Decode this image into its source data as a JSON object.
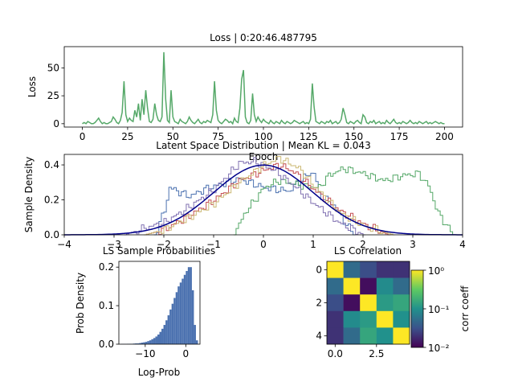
{
  "chart_data": [
    {
      "type": "line",
      "title": "Loss | 0:20:46.487795",
      "xlabel": "Epoch",
      "ylabel": "Loss",
      "xlim": [
        -10,
        210
      ],
      "ylim": [
        -3,
        69
      ],
      "xticks": [
        "0",
        "25",
        "50",
        "75",
        "100",
        "125",
        "150",
        "175",
        "200"
      ],
      "yticks": [
        "0",
        "25",
        "50"
      ],
      "series": [
        {
          "color": "#55a868",
          "x": [
            0,
            1,
            2,
            3,
            4,
            5,
            6,
            7,
            8,
            9,
            10,
            11,
            12,
            13,
            14,
            15,
            16,
            17,
            18,
            19,
            20,
            21,
            22,
            23,
            24,
            25,
            26,
            27,
            28,
            29,
            30,
            31,
            32,
            33,
            34,
            35,
            36,
            37,
            38,
            39,
            40,
            41,
            42,
            43,
            44,
            45,
            46,
            47,
            48,
            49,
            50,
            51,
            52,
            53,
            54,
            55,
            56,
            57,
            58,
            59,
            60,
            61,
            62,
            63,
            64,
            65,
            66,
            67,
            68,
            69,
            70,
            71,
            72,
            73,
            74,
            75,
            76,
            77,
            78,
            79,
            80,
            81,
            82,
            83,
            84,
            85,
            86,
            87,
            88,
            89,
            90,
            91,
            92,
            93,
            94,
            95,
            96,
            97,
            98,
            99,
            100,
            101,
            102,
            103,
            104,
            105,
            106,
            107,
            108,
            109,
            110,
            111,
            112,
            113,
            114,
            115,
            116,
            117,
            118,
            119,
            120,
            121,
            122,
            123,
            124,
            125,
            126,
            127,
            128,
            129,
            130,
            131,
            132,
            133,
            134,
            135,
            136,
            137,
            138,
            139,
            140,
            141,
            142,
            143,
            144,
            145,
            146,
            147,
            148,
            149,
            150,
            151,
            152,
            153,
            154,
            155,
            156,
            157,
            158,
            159,
            160,
            161,
            162,
            163,
            164,
            165,
            166,
            167,
            168,
            169,
            170,
            171,
            172,
            173,
            174,
            175,
            176,
            177,
            178,
            179,
            180,
            181,
            182,
            183,
            184,
            185,
            186,
            187,
            188,
            189,
            190,
            191,
            192,
            193,
            194,
            195,
            196,
            197,
            198,
            199,
            200
          ],
          "y": [
            0,
            1,
            0,
            2,
            1,
            0,
            0,
            1,
            3,
            5,
            2,
            0,
            1,
            0,
            0,
            1,
            2,
            6,
            4,
            1,
            0,
            3,
            10,
            38,
            8,
            2,
            5,
            3,
            2,
            12,
            6,
            18,
            3,
            22,
            8,
            30,
            14,
            2,
            1,
            4,
            18,
            8,
            3,
            2,
            6,
            64,
            22,
            3,
            1,
            30,
            6,
            2,
            1,
            0,
            4,
            2,
            1,
            0,
            2,
            6,
            3,
            1,
            0,
            2,
            4,
            1,
            0,
            2,
            1,
            3,
            2,
            1,
            8,
            38,
            12,
            3,
            1,
            0,
            2,
            4,
            3,
            1,
            2,
            0,
            5,
            2,
            1,
            14,
            40,
            48,
            6,
            1,
            0,
            3,
            27,
            8,
            2,
            6,
            3,
            1,
            4,
            2,
            1,
            0,
            3,
            1,
            0,
            2,
            1,
            0,
            3,
            1,
            0,
            2,
            1,
            0,
            1,
            3,
            2,
            1,
            0,
            1,
            2,
            0,
            1,
            0,
            4,
            36,
            15,
            2,
            1,
            0,
            2,
            1,
            0,
            2,
            1,
            3,
            0,
            1,
            2,
            0,
            1,
            4,
            14,
            8,
            1,
            0,
            2,
            1,
            0,
            2,
            3,
            1,
            0,
            8,
            6,
            1,
            0,
            2,
            1,
            3,
            0,
            1,
            2,
            0,
            1,
            0,
            3,
            1,
            0,
            2,
            4,
            1,
            0,
            1,
            0,
            2,
            1,
            0,
            1,
            3,
            1,
            0,
            1,
            0,
            2,
            1,
            0,
            1,
            2,
            0,
            1,
            0,
            1,
            2,
            1,
            0,
            1,
            0,
            0
          ]
        }
      ]
    },
    {
      "type": "area",
      "title": "Latent Space Distribution | Mean KL = 0.043",
      "ylabel": "Sample Density",
      "xlim": [
        -4,
        4
      ],
      "ylim": [
        0,
        0.46
      ],
      "xticks": [
        "−4",
        "−3",
        "−2",
        "−1",
        "0",
        "1",
        "2",
        "3",
        "4"
      ],
      "yticks": [
        "0.0",
        "0.2",
        "0.4"
      ],
      "series": [
        {
          "color": "#4c72b0",
          "x": [
            -2.2,
            -2.0,
            -1.9,
            -1.5,
            -1.2,
            -0.5,
            0.0,
            0.5,
            0.8,
            1.0,
            1.1,
            1.4,
            1.6,
            1.8
          ],
          "y": [
            0,
            0.14,
            0.27,
            0.22,
            0.26,
            0.32,
            0.27,
            0.25,
            0.33,
            0.36,
            0.23,
            0.17,
            0.08,
            0
          ]
        },
        {
          "color": "#55a868",
          "x": [
            -0.6,
            -0.4,
            0.0,
            0.3,
            0.8,
            1.1,
            1.3,
            1.6,
            2.0,
            2.4,
            2.8,
            3.1,
            3.3,
            3.5,
            3.8
          ],
          "y": [
            0,
            0.12,
            0.27,
            0.31,
            0.28,
            0.27,
            0.34,
            0.38,
            0.35,
            0.31,
            0.34,
            0.35,
            0.28,
            0.12,
            0
          ]
        },
        {
          "color": "#c44e52",
          "x": [
            -2.4,
            -2.0,
            -1.5,
            -1.0,
            -0.5,
            0.0,
            0.3,
            0.6,
            1.0,
            1.5,
            2.0,
            2.5
          ],
          "y": [
            0,
            0.03,
            0.11,
            0.2,
            0.31,
            0.37,
            0.4,
            0.36,
            0.26,
            0.14,
            0.06,
            0
          ]
        },
        {
          "color": "#8172b2",
          "x": [
            -2.8,
            -2.5,
            -2.0,
            -1.5,
            -1.0,
            -0.5,
            -0.2,
            0.2,
            0.6,
            1.0,
            1.5,
            2.0
          ],
          "y": [
            0,
            0.03,
            0.07,
            0.16,
            0.26,
            0.41,
            0.42,
            0.37,
            0.28,
            0.18,
            0.07,
            0
          ]
        },
        {
          "color": "#ccb974",
          "x": [
            -2.4,
            -2.0,
            -1.5,
            -1.0,
            -0.5,
            0.0,
            0.3,
            0.7,
            1.0,
            1.5,
            2.0,
            2.6
          ],
          "y": [
            0,
            0.03,
            0.1,
            0.18,
            0.3,
            0.4,
            0.44,
            0.38,
            0.28,
            0.13,
            0.05,
            0
          ]
        },
        {
          "color": "#00008b",
          "x": [
            -4,
            -3.5,
            -3,
            -2.5,
            -2,
            -1.5,
            -1,
            -0.5,
            0,
            0.5,
            1,
            1.5,
            2,
            2.5,
            3,
            3.5,
            4
          ],
          "y": [
            0.0001,
            0.0009,
            0.0044,
            0.0175,
            0.054,
            0.1295,
            0.242,
            0.352,
            0.399,
            0.352,
            0.242,
            0.1295,
            0.054,
            0.0175,
            0.0044,
            0.0009,
            0.0001
          ]
        }
      ]
    },
    {
      "type": "bar",
      "title": "LS Sample Probabilities",
      "xlabel": "Log-Prob",
      "ylabel": "Prob Density",
      "xlim": [
        -16.5,
        3.5
      ],
      "ylim": [
        0,
        0.215
      ],
      "xticks": [
        "−10",
        "0"
      ],
      "yticks": [
        "0.0",
        "0.1",
        "0.2"
      ],
      "color": "#4c72b0",
      "bins": [
        -16,
        -15.5,
        -15,
        -14.5,
        -14,
        -13.5,
        -13,
        -12.5,
        -12,
        -11.5,
        -11,
        -10.5,
        -10,
        -9.5,
        -9,
        -8.5,
        -8,
        -7.5,
        -7,
        -6.5,
        -6,
        -5.5,
        -5,
        -4.5,
        -4,
        -3.5,
        -3,
        -2.5,
        -2,
        -1.5,
        -1,
        -0.5,
        0,
        0.5,
        1,
        1.5,
        2,
        2.5
      ],
      "values": [
        0.0005,
        0.0005,
        0.0005,
        0.001,
        0.001,
        0.001,
        0.0015,
        0.002,
        0.002,
        0.003,
        0.004,
        0.005,
        0.006,
        0.008,
        0.01,
        0.013,
        0.016,
        0.02,
        0.025,
        0.032,
        0.04,
        0.05,
        0.062,
        0.075,
        0.09,
        0.105,
        0.12,
        0.135,
        0.15,
        0.16,
        0.17,
        0.18,
        0.19,
        0.2,
        0.2,
        0.14,
        0.05,
        0.01
      ]
    },
    {
      "type": "heatmap",
      "title": "LS Correlation",
      "colorbar_label": "corr coeff",
      "scale": "log",
      "colorbar_ticks": [
        "10⁰",
        "10⁻¹",
        "10⁻²"
      ],
      "xticks": [
        "0.0",
        "2.5"
      ],
      "yticks": [
        "0",
        "2",
        "4"
      ],
      "matrix": [
        [
          1.0,
          0.05,
          0.03,
          0.02,
          0.02
        ],
        [
          0.05,
          1.0,
          0.012,
          0.09,
          0.05
        ],
        [
          0.03,
          0.012,
          1.0,
          0.12,
          0.15
        ],
        [
          0.02,
          0.09,
          0.12,
          1.0,
          0.1
        ],
        [
          0.02,
          0.05,
          0.15,
          0.1,
          1.0
        ]
      ]
    }
  ]
}
